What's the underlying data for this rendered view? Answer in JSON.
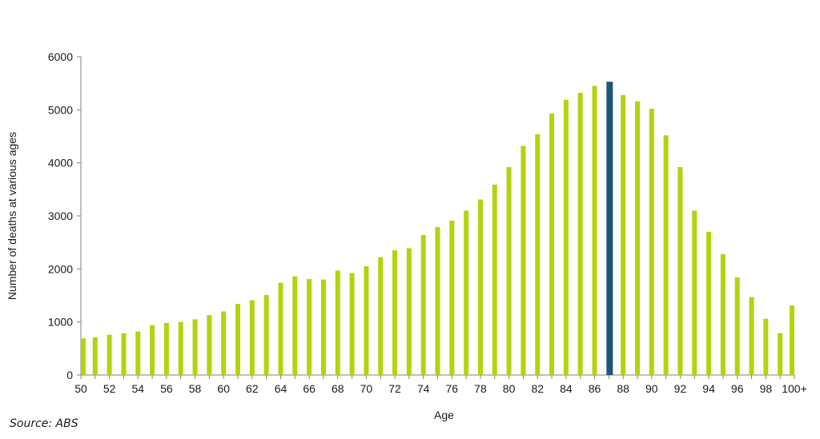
{
  "chart_data": {
    "type": "bar",
    "title": "",
    "xlabel": "Age",
    "ylabel": "Number of deaths at various ages",
    "ylim": [
      0,
      6000
    ],
    "yticks": [
      0,
      1000,
      2000,
      3000,
      4000,
      5000,
      6000
    ],
    "categories": [
      "50",
      "51",
      "52",
      "53",
      "54",
      "55",
      "56",
      "57",
      "58",
      "59",
      "60",
      "61",
      "62",
      "63",
      "64",
      "65",
      "66",
      "67",
      "68",
      "69",
      "70",
      "71",
      "72",
      "73",
      "74",
      "75",
      "76",
      "77",
      "78",
      "79",
      "80",
      "81",
      "82",
      "83",
      "84",
      "85",
      "86",
      "87",
      "88",
      "89",
      "90",
      "91",
      "92",
      "93",
      "94",
      "95",
      "96",
      "97",
      "98",
      "99",
      "100+"
    ],
    "xtick_labels": [
      "50",
      "52",
      "54",
      "56",
      "58",
      "60",
      "62",
      "64",
      "66",
      "68",
      "70",
      "72",
      "74",
      "76",
      "78",
      "80",
      "82",
      "84",
      "86",
      "88",
      "90",
      "92",
      "94",
      "96",
      "98",
      "100+"
    ],
    "values": [
      690,
      710,
      760,
      790,
      820,
      940,
      980,
      1000,
      1050,
      1130,
      1200,
      1340,
      1410,
      1510,
      1740,
      1860,
      1810,
      1800,
      1970,
      1920,
      2050,
      2220,
      2350,
      2390,
      2640,
      2790,
      2910,
      3100,
      3310,
      3590,
      3920,
      4320,
      4540,
      4930,
      5190,
      5320,
      5450,
      5530,
      5280,
      5160,
      5020,
      4520,
      3920,
      3100,
      2700,
      2280,
      1840,
      1470,
      1060,
      790,
      1310
    ],
    "highlight_index": 37,
    "colors": {
      "bar": "#b6d20e",
      "highlight": "#1a5876",
      "axis": "#808080"
    },
    "grid": false,
    "legend": false
  },
  "source_note": "Source: ABS"
}
